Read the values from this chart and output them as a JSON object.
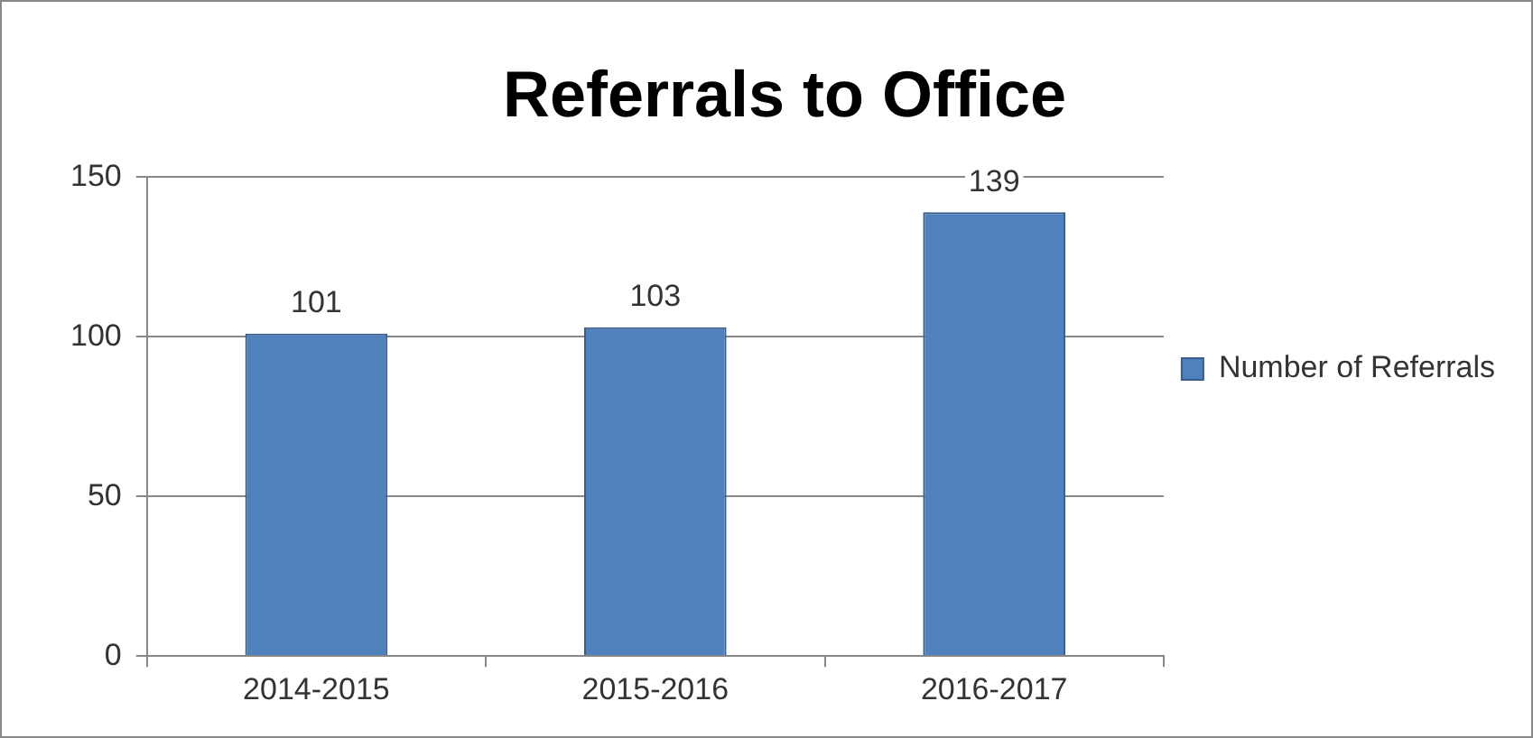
{
  "chart_data": {
    "type": "bar",
    "title": "Referrals to Office",
    "categories": [
      "2014-2015",
      "2015-2016",
      "2016-2017"
    ],
    "series": [
      {
        "name": "Number of Referrals",
        "color": "#4f81bd",
        "values": [
          101,
          103,
          139
        ]
      }
    ],
    "ylim": [
      0,
      150
    ],
    "yticks": [
      0,
      50,
      100,
      150
    ],
    "grid": "y",
    "legend": "right",
    "data_labels": true
  }
}
